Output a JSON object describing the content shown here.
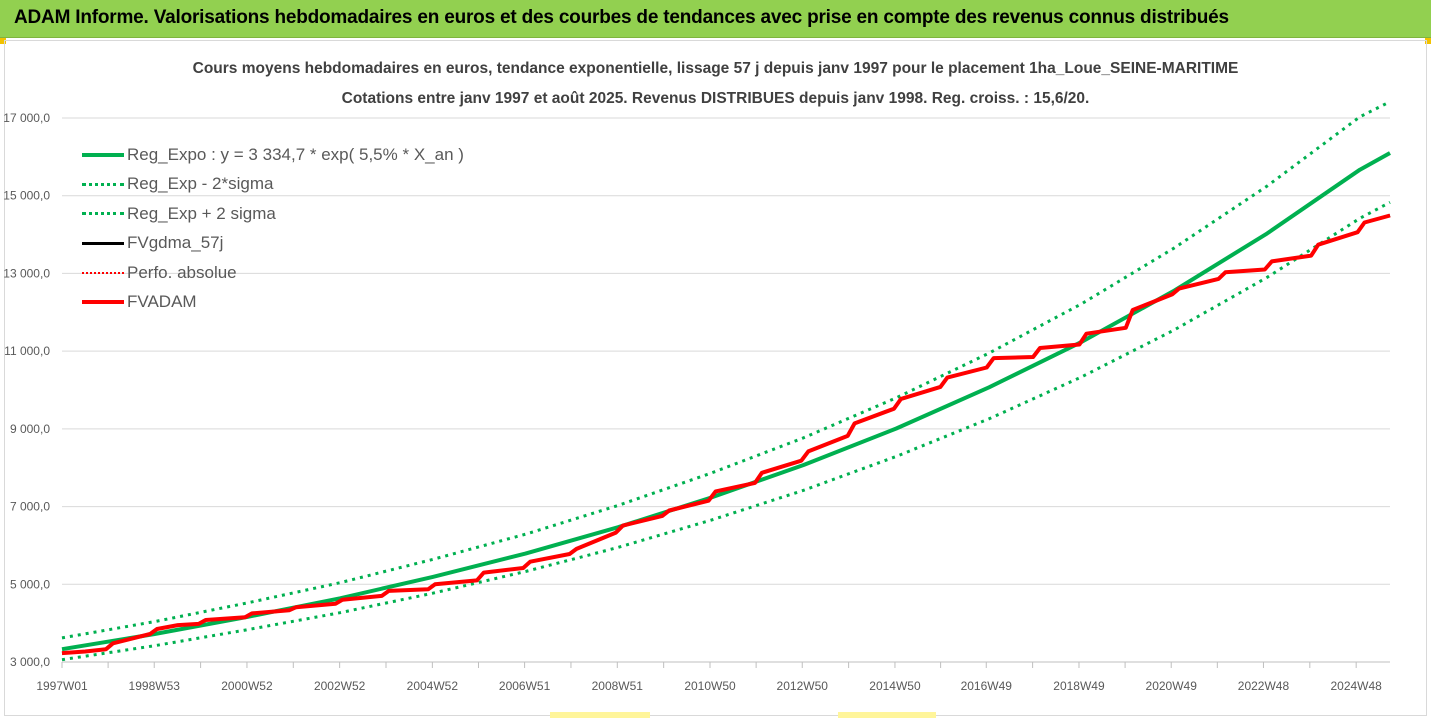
{
  "header": {
    "title": "ADAM Informe. Valorisations hebdomadaires en euros et des courbes de tendances avec prise en compte des revenus connus distribués"
  },
  "chart_data": {
    "type": "line",
    "title": "Cours moyens hebdomadaires en euros, tendance exponentielle, lissage 57 j depuis janv 1997  pour le placement 1ha_Loue_SEINE-MARITIME",
    "subtitle": "Cotations entre janv 1997 et août 2025. Revenus DISTRIBUES depuis janv 1998. Reg. croiss. : 15,6/20.",
    "xlabel": "",
    "ylabel": "",
    "x_range": [
      1997.0,
      2025.65
    ],
    "ylim": [
      3000,
      17000
    ],
    "y_ticks": [
      3000,
      5000,
      7000,
      9000,
      11000,
      13000,
      15000,
      17000
    ],
    "y_tick_labels": [
      "3 000,0",
      "5 000,0",
      "7 000,0",
      "9 000,0",
      "11 000,0",
      "13 000,0",
      "15 000,0",
      "17 000,0"
    ],
    "x_ticks": [
      1997.0,
      1998.99,
      2000.99,
      2002.99,
      2004.99,
      2006.98,
      2008.98,
      2010.98,
      2012.97,
      2014.97,
      2016.94,
      2018.94,
      2020.93,
      2022.92,
      2024.92
    ],
    "x_tick_labels": [
      "1997W01",
      "1998W53",
      "2000W52",
      "2002W52",
      "2004W52",
      "2006W51",
      "2008W51",
      "2010W50",
      "2012W50",
      "2014W50",
      "2016W49",
      "2018W49",
      "2020W49",
      "2022W48",
      "2024W48"
    ],
    "grid": true,
    "legend_position": "top-left",
    "series": [
      {
        "name": "Reg_Expo : y = 3 334,7 * exp( 5,5% *  X_an )",
        "color": "#00b050",
        "style": "solid",
        "width": 4,
        "x": [
          1997,
          1999,
          2001,
          2003,
          2005,
          2007,
          2009,
          2011,
          2013,
          2015,
          2017,
          2019,
          2021,
          2023,
          2025,
          2025.65
        ],
        "values": [
          3330,
          3720,
          4160,
          4640,
          5190,
          5790,
          6470,
          7230,
          8070,
          9010,
          10070,
          11240,
          12560,
          14030,
          15670,
          16100
        ]
      },
      {
        "name": "Reg_Exp - 2*sigma",
        "color": "#00b050",
        "style": "dotted",
        "width": 3,
        "x": [
          1997,
          1999,
          2001,
          2003,
          2005,
          2007,
          2009,
          2011,
          2013,
          2015,
          2017,
          2019,
          2021,
          2023,
          2025,
          2025.65
        ],
        "values": [
          3060,
          3420,
          3830,
          4270,
          4770,
          5330,
          5950,
          6650,
          7420,
          8290,
          9260,
          10340,
          11550,
          12900,
          14420,
          14830
        ]
      },
      {
        "name": "Reg_Exp + 2 sigma",
        "color": "#00b050",
        "style": "dotted",
        "width": 3,
        "x": [
          1997,
          1999,
          2001,
          2003,
          2005,
          2007,
          2009,
          2011,
          2013,
          2015,
          2017,
          2019,
          2021,
          2023,
          2025,
          2025.65
        ],
        "values": [
          3620,
          4040,
          4520,
          5040,
          5640,
          6290,
          7030,
          7860,
          8770,
          9800,
          10950,
          12220,
          13660,
          15250,
          17030,
          17420
        ]
      },
      {
        "name": "FVgdma_57j",
        "color": "#000000",
        "style": "solid",
        "width": 3,
        "x": [
          1997.0,
          1997.5,
          1997.95,
          1998.1,
          1998.9,
          1999.05,
          1999.5,
          1999.95,
          2000.1,
          2000.95,
          2001.1,
          2001.9,
          2002.05,
          2002.9,
          2003.05,
          2003.9,
          2004.05,
          2004.9,
          2005.05,
          2005.95,
          2006.1,
          2006.95,
          2007.1,
          2007.95,
          2008.1,
          2008.95,
          2009.1,
          2009.95,
          2010.1,
          2010.95,
          2011.1,
          2011.95,
          2012.1,
          2012.95,
          2013.1,
          2013.95,
          2014.1,
          2014.95,
          2015.1,
          2015.95,
          2016.1,
          2016.95,
          2017.1,
          2017.95,
          2018.1,
          2018.95,
          2019.1,
          2019.95,
          2020.1,
          2020.95,
          2021.1,
          2021.95,
          2022.1,
          2022.95,
          2023.1,
          2023.95,
          2024.1,
          2024.95,
          2025.1,
          2025.65
        ],
        "values": [
          3230,
          3270,
          3330,
          3480,
          3720,
          3850,
          3950,
          3980,
          4080,
          4150,
          4250,
          4330,
          4410,
          4500,
          4600,
          4700,
          4830,
          4870,
          5000,
          5100,
          5300,
          5420,
          5580,
          5780,
          5910,
          6330,
          6510,
          6760,
          6900,
          7150,
          7390,
          7610,
          7870,
          8180,
          8420,
          8820,
          9140,
          9520,
          9770,
          10080,
          10320,
          10580,
          10820,
          10850,
          11080,
          11170,
          11450,
          11600,
          12060,
          12460,
          12610,
          12860,
          13030,
          13100,
          13310,
          13460,
          13740,
          14060,
          14310,
          14490
        ]
      },
      {
        "name": "Perfo. absolue",
        "color": "#ff0000",
        "style": "dotted",
        "width": 2,
        "x": [
          1997.0,
          1997.5,
          1997.95,
          1998.1,
          1998.9,
          1999.05,
          1999.5,
          1999.95,
          2000.1,
          2000.95,
          2001.1,
          2001.9,
          2002.05,
          2002.9,
          2003.05,
          2003.9,
          2004.05,
          2004.9,
          2005.05,
          2005.95,
          2006.1,
          2006.95,
          2007.1,
          2007.95,
          2008.1,
          2008.95,
          2009.1,
          2009.95,
          2010.1,
          2010.95,
          2011.1,
          2011.95,
          2012.1,
          2012.95,
          2013.1,
          2013.95,
          2014.1,
          2014.95,
          2015.1,
          2015.95,
          2016.1,
          2016.95,
          2017.1,
          2017.95,
          2018.1,
          2018.95,
          2019.1,
          2019.95,
          2020.1,
          2020.95,
          2021.1,
          2021.95,
          2022.1,
          2022.95,
          2023.1,
          2023.95,
          2024.1,
          2024.95,
          2025.1,
          2025.65
        ],
        "values": [
          3230,
          3270,
          3330,
          3480,
          3720,
          3850,
          3950,
          3980,
          4080,
          4150,
          4250,
          4330,
          4410,
          4500,
          4600,
          4700,
          4830,
          4870,
          5000,
          5100,
          5300,
          5420,
          5580,
          5780,
          5910,
          6330,
          6510,
          6760,
          6900,
          7150,
          7390,
          7610,
          7870,
          8180,
          8420,
          8820,
          9140,
          9520,
          9770,
          10080,
          10320,
          10580,
          10820,
          10850,
          11080,
          11170,
          11450,
          11600,
          12060,
          12460,
          12610,
          12860,
          13030,
          13100,
          13310,
          13460,
          13740,
          14060,
          14310,
          14490
        ]
      },
      {
        "name": "FVADAM",
        "color": "#ff0000",
        "style": "solid",
        "width": 4,
        "x": [
          1997.0,
          1997.5,
          1997.95,
          1998.1,
          1998.9,
          1999.05,
          1999.5,
          1999.95,
          2000.1,
          2000.95,
          2001.1,
          2001.9,
          2002.05,
          2002.9,
          2003.05,
          2003.9,
          2004.05,
          2004.9,
          2005.05,
          2005.95,
          2006.1,
          2006.95,
          2007.1,
          2007.95,
          2008.1,
          2008.95,
          2009.1,
          2009.95,
          2010.1,
          2010.95,
          2011.1,
          2011.95,
          2012.1,
          2012.95,
          2013.1,
          2013.95,
          2014.1,
          2014.95,
          2015.1,
          2015.95,
          2016.1,
          2016.95,
          2017.1,
          2017.95,
          2018.1,
          2018.95,
          2019.1,
          2019.95,
          2020.1,
          2020.95,
          2021.1,
          2021.95,
          2022.1,
          2022.95,
          2023.1,
          2023.95,
          2024.1,
          2024.95,
          2025.1,
          2025.65
        ],
        "values": [
          3230,
          3270,
          3330,
          3480,
          3720,
          3850,
          3950,
          3980,
          4080,
          4150,
          4250,
          4330,
          4410,
          4500,
          4600,
          4700,
          4830,
          4870,
          5000,
          5100,
          5300,
          5420,
          5580,
          5780,
          5910,
          6330,
          6510,
          6760,
          6900,
          7150,
          7390,
          7610,
          7870,
          8180,
          8420,
          8820,
          9140,
          9520,
          9770,
          10080,
          10320,
          10580,
          10820,
          10850,
          11080,
          11170,
          11450,
          11600,
          12060,
          12460,
          12610,
          12860,
          13030,
          13100,
          13310,
          13460,
          13740,
          14060,
          14310,
          14490
        ]
      }
    ]
  }
}
